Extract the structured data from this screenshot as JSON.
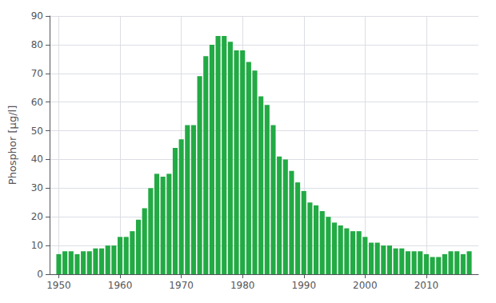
{
  "chart_data": {
    "type": "bar",
    "x": [
      1950,
      1951,
      1952,
      1953,
      1954,
      1955,
      1956,
      1957,
      1958,
      1959,
      1960,
      1961,
      1962,
      1963,
      1964,
      1965,
      1966,
      1967,
      1968,
      1969,
      1970,
      1971,
      1972,
      1973,
      1974,
      1975,
      1976,
      1977,
      1978,
      1979,
      1980,
      1981,
      1982,
      1983,
      1984,
      1985,
      1986,
      1987,
      1988,
      1989,
      1990,
      1991,
      1992,
      1993,
      1994,
      1995,
      1996,
      1997,
      1998,
      1999,
      2000,
      2001,
      2002,
      2003,
      2004,
      2005,
      2006,
      2007,
      2008,
      2009,
      2010,
      2011,
      2012,
      2013,
      2014,
      2015,
      2016,
      2017
    ],
    "values": [
      7,
      8,
      8,
      7,
      8,
      8,
      9,
      9,
      10,
      10,
      13,
      13,
      15,
      19,
      23,
      30,
      35,
      34,
      35,
      44,
      47,
      52,
      52,
      69,
      76,
      80,
      83,
      83,
      81,
      78,
      78,
      74,
      71,
      62,
      59,
      52,
      41,
      40,
      36,
      32,
      29,
      25,
      24,
      22,
      20,
      18,
      17,
      16,
      15,
      15,
      13,
      11,
      11,
      10,
      10,
      9,
      9,
      8,
      8,
      8,
      7,
      6,
      6,
      7,
      8,
      8,
      7,
      8
    ],
    "color": "#22aa44",
    "ylabel": "Phosphor [µg/l]",
    "xlim": [
      1948.5,
      2018.5
    ],
    "xticks": [
      1950,
      1960,
      1970,
      1980,
      1990,
      2000,
      2010
    ],
    "ylim": [
      0,
      90
    ],
    "yticks": [
      0,
      10,
      20,
      30,
      40,
      50,
      60,
      70,
      80,
      90
    ],
    "grid": true
  }
}
